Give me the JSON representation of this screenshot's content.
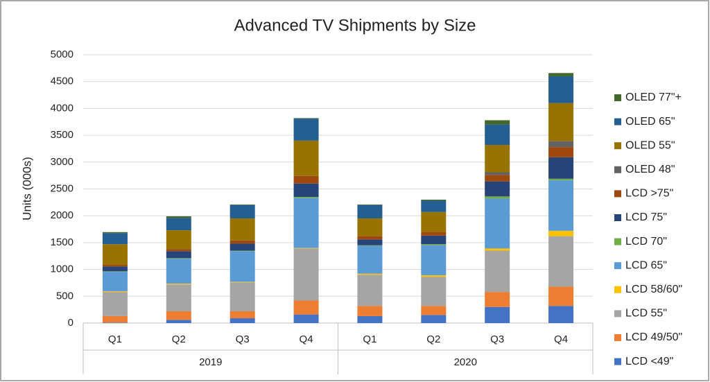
{
  "chart_data": {
    "type": "stacked-bar",
    "title": "Advanced TV Shipments by Size",
    "y_label": "Units (000s)",
    "categories": [
      "Q1",
      "Q2",
      "Q3",
      "Q4",
      "Q1",
      "Q2",
      "Q3",
      "Q4"
    ],
    "groups": [
      {
        "name": "2019",
        "count": 4
      },
      {
        "name": "2020",
        "count": 4
      }
    ],
    "ylim": [
      0,
      5000
    ],
    "yticks": [
      0,
      500,
      1000,
      1500,
      2000,
      2500,
      3000,
      3500,
      4000,
      4500,
      5000
    ],
    "grid": true,
    "legend": "right",
    "series": [
      {
        "name": "LCD <49\"",
        "color": "#4472c4",
        "values": [
          10,
          60,
          90,
          160,
          130,
          150,
          300,
          320
        ]
      },
      {
        "name": "LCD 49/50\"",
        "color": "#ed7d31",
        "values": [
          120,
          160,
          130,
          260,
          190,
          170,
          280,
          360
        ]
      },
      {
        "name": "LCD 55\"",
        "color": "#a5a5a5",
        "values": [
          450,
          500,
          540,
          970,
          580,
          540,
          770,
          940
        ]
      },
      {
        "name": "LCD 58/60\"",
        "color": "#ffc000",
        "values": [
          15,
          15,
          10,
          10,
          20,
          30,
          40,
          100
        ]
      },
      {
        "name": "LCD 65\"",
        "color": "#5b9bd5",
        "values": [
          360,
          465,
          570,
          930,
          520,
          560,
          930,
          940
        ]
      },
      {
        "name": "LCD 70\"",
        "color": "#70ad47",
        "values": [
          10,
          10,
          10,
          20,
          10,
          20,
          40,
          30
        ]
      },
      {
        "name": "LCD 75\"",
        "color": "#264478",
        "values": [
          90,
          130,
          130,
          250,
          110,
          160,
          280,
          400
        ]
      },
      {
        "name": "LCD >75\"",
        "color": "#9e480e",
        "values": [
          30,
          40,
          60,
          140,
          60,
          70,
          120,
          190
        ]
      },
      {
        "name": "OLED 48\"",
        "color": "#636363",
        "values": [
          0,
          0,
          0,
          0,
          0,
          0,
          50,
          110
        ]
      },
      {
        "name": "OLED 55\"",
        "color": "#997300",
        "values": [
          385,
          350,
          410,
          660,
          330,
          370,
          510,
          710
        ]
      },
      {
        "name": "OLED 65\"",
        "color": "#255e91",
        "values": [
          205,
          230,
          250,
          410,
          250,
          210,
          380,
          500
        ]
      },
      {
        "name": "OLED 77\"+",
        "color": "#43682b",
        "values": [
          20,
          30,
          10,
          10,
          10,
          20,
          80,
          60
        ]
      }
    ]
  }
}
